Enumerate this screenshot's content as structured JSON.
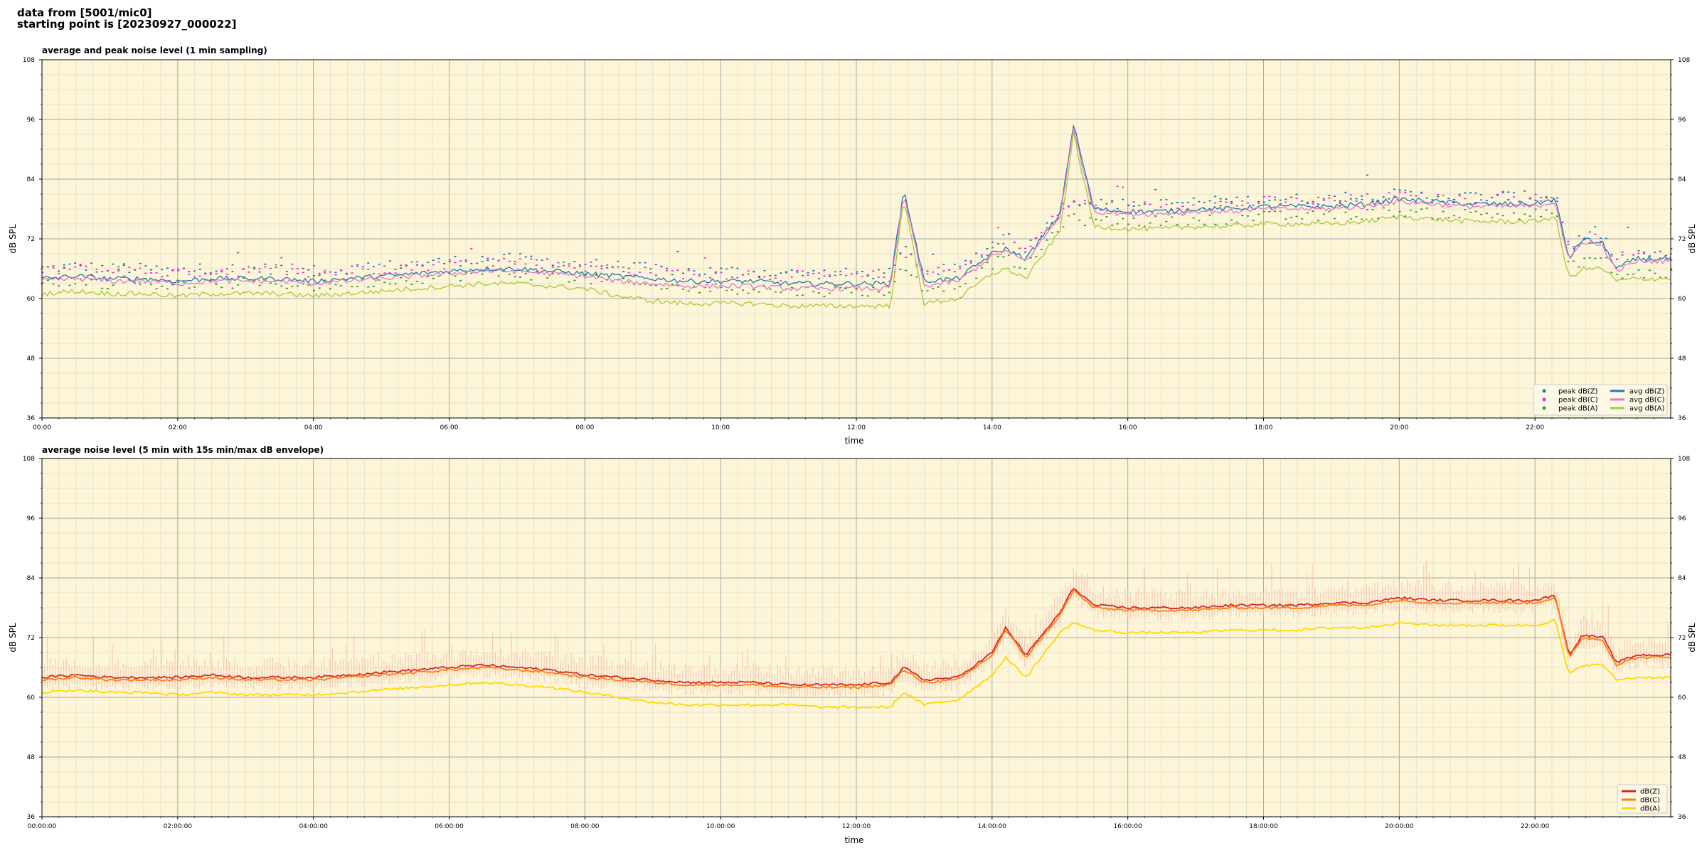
{
  "header": {
    "line1": "data from [5001/mic0]",
    "line2": "starting point is [20230927_000022]"
  },
  "colors": {
    "plot_bg": "#fdf5d8",
    "grid_major": "#a8a8a8",
    "grid_minor": "#e2dccb"
  },
  "chart_data": [
    {
      "type": "line",
      "title": "average and peak noise level (1 min sampling)",
      "xlabel": "time",
      "ylabel": "dB SPL",
      "ylabel_right": "dB SPL",
      "xlim": [
        0,
        24
      ],
      "ylim": [
        36,
        108
      ],
      "yticks": [
        "36",
        "48",
        "60",
        "72",
        "84",
        "96",
        "108"
      ],
      "xticks": [
        "00:00",
        "02:00",
        "04:00",
        "06:00",
        "08:00",
        "10:00",
        "12:00",
        "14:00",
        "16:00",
        "18:00",
        "20:00",
        "22:00"
      ],
      "grid": true,
      "legend_position": "lower-right",
      "legend_columns": 2,
      "x": [
        0,
        0.5,
        1,
        1.5,
        2,
        2.5,
        3,
        3.5,
        4,
        4.5,
        5,
        5.5,
        6,
        6.5,
        7,
        7.5,
        8,
        8.5,
        9,
        9.5,
        10,
        10.5,
        11,
        11.5,
        12,
        12.5,
        12.7,
        13,
        13.5,
        14,
        14.2,
        14.5,
        15,
        15.2,
        15.5,
        16,
        16.5,
        17,
        17.5,
        18,
        18.5,
        19,
        19.5,
        20,
        20.5,
        21,
        21.5,
        22,
        22.3,
        22.5,
        22.7,
        23,
        23.2,
        23.5,
        24
      ],
      "series": [
        {
          "name": "peak dB(Z)",
          "kind": "points",
          "color": "#1f77b4",
          "values": [
            66,
            66.5,
            66,
            66,
            65.5,
            66,
            66,
            66,
            65.5,
            66,
            66.5,
            67,
            67.5,
            68,
            68,
            67.5,
            67,
            66.5,
            66,
            65.5,
            65.5,
            65.5,
            65,
            65,
            65,
            65,
            70,
            65.5,
            66,
            71,
            73,
            70,
            78,
            80,
            79,
            79,
            79,
            79.5,
            79.5,
            80,
            80,
            80,
            80.5,
            81,
            80.5,
            80.5,
            80.5,
            80.5,
            81,
            70,
            73,
            72,
            68,
            69,
            69
          ]
        },
        {
          "name": "peak dB(C)",
          "kind": "points",
          "color": "#e62fd2",
          "values": [
            65.5,
            66,
            65.5,
            65.5,
            65,
            65.5,
            65.5,
            65.5,
            65,
            65.5,
            66,
            66.5,
            67,
            67.5,
            67.5,
            67,
            66.5,
            66,
            65.5,
            65,
            65,
            65,
            64.5,
            64.5,
            64.5,
            64.5,
            69.5,
            65,
            65.5,
            70.5,
            72.5,
            69.5,
            77.5,
            79.5,
            78.5,
            78.5,
            78.5,
            79,
            79,
            79.5,
            79.5,
            79.5,
            80,
            80.5,
            80,
            80,
            80,
            80,
            80.5,
            69.5,
            72.5,
            71.5,
            67.5,
            68.5,
            68.5
          ]
        },
        {
          "name": "peak dB(A)",
          "kind": "points",
          "color": "#2ca02c",
          "values": [
            63,
            63.5,
            63,
            63,
            62.5,
            63,
            63,
            63,
            62.5,
            63,
            63.5,
            64,
            64.5,
            65,
            65,
            64.5,
            64,
            63,
            62.5,
            62,
            62,
            62,
            61.5,
            61.5,
            61.5,
            61.5,
            66.5,
            62,
            63,
            67,
            68,
            66,
            75,
            76,
            75.5,
            75.5,
            75.5,
            76,
            76,
            76.5,
            76.5,
            76.5,
            77,
            77.5,
            77,
            77,
            77,
            77,
            77.5,
            66,
            68,
            68,
            64.5,
            65,
            65
          ]
        },
        {
          "name": "avg dB(Z)",
          "kind": "line",
          "color": "#1f77b4",
          "values": [
            64,
            64.5,
            64,
            64,
            63.5,
            64,
            64,
            64,
            63.5,
            64,
            64.5,
            65,
            65.5,
            66,
            66,
            65.5,
            65,
            64.5,
            64,
            63.5,
            63.5,
            63.5,
            63,
            63,
            63,
            63,
            82,
            63.5,
            64,
            69,
            70,
            68,
            77,
            95,
            78,
            77.5,
            77.5,
            78,
            78,
            78.5,
            78.5,
            78.5,
            79,
            80,
            79.5,
            79,
            79,
            79,
            80,
            68,
            72,
            71,
            66,
            68,
            68
          ]
        },
        {
          "name": "avg dB(C)",
          "kind": "line",
          "color": "#e377c2",
          "values": [
            63.5,
            64,
            63.5,
            63.5,
            63,
            63.5,
            63.5,
            63.5,
            63,
            63.5,
            64,
            64.5,
            65,
            65.5,
            65.5,
            65,
            64.5,
            63.5,
            63,
            62.5,
            62.5,
            62.5,
            62,
            62,
            62,
            62,
            81,
            62.5,
            63.5,
            68.5,
            69.5,
            67.5,
            76.5,
            94,
            77.5,
            77,
            77,
            77.5,
            77.5,
            78,
            78,
            78,
            78.5,
            79.5,
            79,
            78.5,
            78.5,
            78.5,
            79.5,
            67.5,
            71.5,
            70.5,
            65.5,
            67.5,
            67.5
          ]
        },
        {
          "name": "avg dB(A)",
          "kind": "line",
          "color": "#a8c83a",
          "values": [
            61,
            61.5,
            61,
            61,
            60.5,
            61,
            61,
            61,
            60.5,
            61,
            61.5,
            62,
            62.5,
            63,
            63,
            62.5,
            62,
            60.5,
            59.5,
            59,
            59,
            59,
            58.5,
            58.5,
            58.5,
            58.5,
            80,
            59,
            60,
            65,
            66,
            64,
            73.5,
            93,
            74.5,
            74,
            74,
            74.5,
            74.5,
            75,
            75,
            75,
            75.5,
            76.5,
            76,
            75.5,
            75.5,
            75.5,
            76.5,
            64,
            66,
            66,
            63.5,
            64,
            64
          ]
        }
      ]
    },
    {
      "type": "line",
      "title": "average noise level (5 min with 15s min/max dB envelope)",
      "xlabel": "time",
      "ylabel": "dB SPL",
      "ylabel_right": "dB SPL",
      "xlim": [
        0,
        24
      ],
      "ylim": [
        36,
        108
      ],
      "yticks": [
        "36",
        "48",
        "60",
        "72",
        "84",
        "96",
        "108"
      ],
      "xticks": [
        "00:00:00",
        "02:00:00",
        "04:00:00",
        "06:00:00",
        "08:00:00",
        "10:00:00",
        "12:00:00",
        "14:00:00",
        "16:00:00",
        "18:00:00",
        "20:00:00",
        "22:00:00"
      ],
      "grid": true,
      "legend_position": "lower-right",
      "legend_columns": 1,
      "x": [
        0,
        0.5,
        1,
        1.5,
        2,
        2.5,
        3,
        3.5,
        4,
        4.5,
        5,
        5.5,
        6,
        6.5,
        7,
        7.5,
        8,
        8.5,
        9,
        9.5,
        10,
        10.5,
        11,
        11.5,
        12,
        12.5,
        12.7,
        13,
        13.5,
        14,
        14.2,
        14.5,
        15,
        15.2,
        15.5,
        16,
        16.5,
        17,
        17.5,
        18,
        18.5,
        19,
        19.5,
        20,
        20.5,
        21,
        21.5,
        22,
        22.3,
        22.5,
        22.7,
        23,
        23.2,
        23.5,
        24
      ],
      "series": [
        {
          "name": "dB(Z)",
          "color": "#d62728",
          "values": [
            64,
            64.5,
            64,
            64,
            64,
            64.5,
            64,
            64,
            64,
            64.5,
            65,
            65.5,
            66,
            66.5,
            66,
            65.5,
            64.5,
            64,
            63.5,
            63,
            63,
            63,
            62.5,
            62.5,
            62.5,
            63,
            66,
            63.5,
            64,
            69,
            74,
            68.5,
            77,
            82,
            78.5,
            78,
            78,
            78,
            78.5,
            78.5,
            78.5,
            79,
            79,
            80,
            79.5,
            79.5,
            79.5,
            79.5,
            80.5,
            68.5,
            72.5,
            72,
            67,
            68.5,
            68.5
          ]
        },
        {
          "name": "dB(C)",
          "color": "#ff7f0e",
          "values": [
            63.5,
            64,
            63.5,
            63.5,
            63.5,
            64,
            63.5,
            63.5,
            63.5,
            64,
            64.5,
            65,
            65.5,
            66,
            65.5,
            65,
            64,
            63.5,
            63,
            62.5,
            62.5,
            62.5,
            62,
            62,
            62,
            62.5,
            65.5,
            63,
            63.5,
            68.5,
            73.5,
            68,
            76.5,
            81.5,
            78,
            77.5,
            77.5,
            77.5,
            78,
            78,
            78,
            78.5,
            78.5,
            79.5,
            79,
            79,
            79,
            79,
            80,
            68,
            72,
            71.5,
            66.5,
            68,
            68
          ]
        },
        {
          "name": "dB(A)",
          "color": "#ffd700",
          "values": [
            61,
            61.5,
            61,
            61,
            60.5,
            61,
            60.5,
            60.5,
            60.5,
            61,
            61.5,
            62,
            62.5,
            63,
            62.5,
            62,
            61,
            60,
            59,
            58.5,
            58.5,
            58.5,
            58.5,
            58,
            58,
            58,
            61,
            58.5,
            59.5,
            64.5,
            68,
            64,
            73,
            75,
            73.5,
            73,
            73,
            73,
            73.5,
            73.5,
            73.5,
            74,
            74,
            75,
            74.5,
            74.5,
            74.5,
            74.5,
            75.5,
            64.5,
            66.5,
            66.5,
            63.5,
            64,
            64
          ]
        }
      ]
    }
  ]
}
